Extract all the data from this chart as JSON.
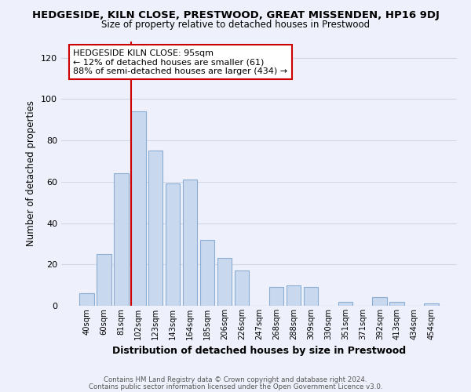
{
  "title": "HEDGESIDE, KILN CLOSE, PRESTWOOD, GREAT MISSENDEN, HP16 9DJ",
  "subtitle": "Size of property relative to detached houses in Prestwood",
  "xlabel": "Distribution of detached houses by size in Prestwood",
  "ylabel": "Number of detached properties",
  "bar_color": "#c8d8ee",
  "bar_edge_color": "#8badd4",
  "bin_labels": [
    "40sqm",
    "60sqm",
    "81sqm",
    "102sqm",
    "123sqm",
    "143sqm",
    "164sqm",
    "185sqm",
    "206sqm",
    "226sqm",
    "247sqm",
    "268sqm",
    "288sqm",
    "309sqm",
    "330sqm",
    "351sqm",
    "371sqm",
    "392sqm",
    "413sqm",
    "434sqm",
    "454sqm"
  ],
  "bar_heights": [
    6,
    25,
    64,
    94,
    75,
    59,
    61,
    32,
    23,
    17,
    0,
    9,
    10,
    9,
    0,
    2,
    0,
    4,
    2,
    0,
    1
  ],
  "vline_x_index": 3,
  "vline_color": "#cc0000",
  "ylim": [
    0,
    128
  ],
  "yticks": [
    0,
    20,
    40,
    60,
    80,
    100,
    120
  ],
  "annotation_title": "HEDGESIDE KILN CLOSE: 95sqm",
  "annotation_line1": "← 12% of detached houses are smaller (61)",
  "annotation_line2": "88% of semi-detached houses are larger (434) →",
  "annotation_box_color": "#ffffff",
  "annotation_box_edge": "#cc0000",
  "footer1": "Contains HM Land Registry data © Crown copyright and database right 2024.",
  "footer2": "Contains public sector information licensed under the Open Government Licence v3.0.",
  "background_color": "#eef1fb",
  "grid_color": "#d0d8e8"
}
